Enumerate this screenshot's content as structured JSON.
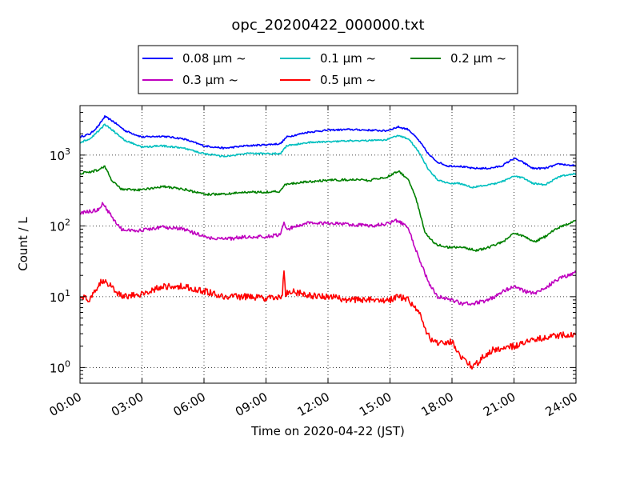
{
  "chart_data": {
    "type": "line",
    "title": "opc_20200422_000000.txt",
    "xlabel": "Time on 2020-04-22 (JST)",
    "ylabel": "Count / L",
    "x_unit": "hours",
    "xlim": [
      0,
      24
    ],
    "ylim": [
      0.6,
      5000
    ],
    "yscale": "log",
    "grid": true,
    "grid_style": "dotted",
    "legend_position": "top-center",
    "x_ticks": [
      {
        "value": 0,
        "label": "00:00"
      },
      {
        "value": 3,
        "label": "03:00"
      },
      {
        "value": 6,
        "label": "06:00"
      },
      {
        "value": 9,
        "label": "09:00"
      },
      {
        "value": 12,
        "label": "12:00"
      },
      {
        "value": 15,
        "label": "15:00"
      },
      {
        "value": 18,
        "label": "18:00"
      },
      {
        "value": 21,
        "label": "21:00"
      },
      {
        "value": 24,
        "label": "24:00"
      }
    ],
    "y_ticks": [
      {
        "value": 1,
        "base": "10",
        "exp": "0"
      },
      {
        "value": 10,
        "base": "10",
        "exp": "1"
      },
      {
        "value": 100,
        "base": "10",
        "exp": "2"
      },
      {
        "value": 1000,
        "base": "10",
        "exp": "3"
      }
    ],
    "series": [
      {
        "name": "0.08 μm  ~",
        "color": "#0000ff",
        "x": [
          0,
          0.5,
          0.9,
          1.2,
          1.6,
          2.2,
          3,
          4,
          5,
          6,
          7,
          8,
          9,
          9.7,
          10,
          11,
          12,
          13,
          14,
          14.8,
          15.4,
          15.9,
          16.4,
          16.9,
          17.3,
          17.8,
          18.3,
          19,
          19.8,
          20.4,
          21,
          21.4,
          21.9,
          22.5,
          23.2,
          24
        ],
        "y": [
          1800,
          2000,
          2600,
          3500,
          3000,
          2200,
          1800,
          1850,
          1700,
          1350,
          1250,
          1350,
          1400,
          1450,
          1800,
          2100,
          2250,
          2300,
          2250,
          2200,
          2500,
          2300,
          1600,
          1000,
          800,
          700,
          700,
          650,
          650,
          700,
          900,
          800,
          650,
          650,
          750,
          700
        ]
      },
      {
        "name": "0.1 μm  ~",
        "color": "#00bfbf",
        "x": [
          0,
          0.5,
          0.9,
          1.2,
          1.6,
          2.2,
          3,
          4,
          5,
          6,
          7,
          8,
          9,
          9.7,
          10,
          11,
          12,
          13,
          14,
          14.8,
          15.4,
          15.9,
          16.4,
          16.9,
          17.3,
          17.8,
          18.3,
          19,
          19.8,
          20.4,
          21,
          21.4,
          21.9,
          22.5,
          23.2,
          24
        ],
        "y": [
          1500,
          1700,
          2200,
          2700,
          2200,
          1600,
          1300,
          1350,
          1250,
          1050,
          950,
          1050,
          1050,
          1050,
          1350,
          1500,
          1550,
          1600,
          1600,
          1650,
          1900,
          1700,
          1100,
          600,
          450,
          400,
          400,
          350,
          380,
          420,
          500,
          480,
          400,
          380,
          500,
          550
        ]
      },
      {
        "name": "0.2 μm  ~",
        "color": "#008000",
        "x": [
          0,
          0.5,
          0.9,
          1.2,
          1.5,
          2,
          2.8,
          4,
          5,
          6,
          7,
          8,
          9,
          9.7,
          9.9,
          11,
          12,
          13,
          14,
          14.8,
          15.4,
          15.9,
          16.3,
          16.7,
          17.2,
          17.8,
          18.5,
          19.2,
          19.8,
          20.5,
          21,
          21.5,
          22,
          22.5,
          23,
          24
        ],
        "y": [
          550,
          580,
          620,
          700,
          450,
          330,
          320,
          360,
          330,
          280,
          280,
          300,
          300,
          310,
          380,
          420,
          440,
          450,
          440,
          480,
          600,
          450,
          220,
          80,
          55,
          50,
          50,
          45,
          50,
          60,
          80,
          70,
          60,
          70,
          90,
          120
        ]
      },
      {
        "name": "0.3 μm  ~",
        "color": "#bf00bf",
        "x": [
          0,
          0.5,
          0.9,
          1.1,
          1.5,
          2,
          2.8,
          4,
          5,
          6,
          7,
          8,
          9,
          9.7,
          9.85,
          10,
          11,
          12,
          13,
          14,
          14.8,
          15.4,
          15.9,
          16.4,
          16.9,
          17.3,
          18,
          18.5,
          19,
          19.8,
          20.5,
          21,
          21.5,
          22,
          22.5,
          23,
          23.6,
          24
        ],
        "y": [
          150,
          160,
          170,
          210,
          140,
          90,
          85,
          95,
          90,
          70,
          65,
          70,
          70,
          75,
          110,
          90,
          110,
          110,
          105,
          100,
          105,
          120,
          90,
          35,
          15,
          10,
          9,
          8,
          8,
          9,
          12,
          14,
          12,
          11,
          13,
          17,
          20,
          22
        ]
      },
      {
        "name": "0.5 μm  ~",
        "color": "#ff0000",
        "x": [
          0,
          0.5,
          0.8,
          1,
          1.2,
          1.5,
          1.8,
          2.2,
          3,
          4,
          5,
          6,
          7,
          8,
          9,
          9.8,
          9.85,
          9.95,
          10.1,
          10.8,
          11.5,
          12,
          13,
          14,
          15,
          15.4,
          15.9,
          16.4,
          16.8,
          17.1,
          17.5,
          18,
          18.4,
          19,
          19.5,
          20,
          21,
          22,
          23,
          24
        ],
        "y": [
          10,
          9,
          13,
          16,
          17,
          14,
          11,
          10,
          11,
          14,
          14,
          12,
          10,
          10,
          9.5,
          10,
          28,
          11,
          12,
          11,
          10,
          10,
          9,
          9,
          9,
          10,
          9,
          6,
          3,
          2.2,
          2.3,
          2.3,
          1.5,
          1,
          1.4,
          1.8,
          2,
          2.5,
          2.8,
          3
        ]
      }
    ]
  }
}
